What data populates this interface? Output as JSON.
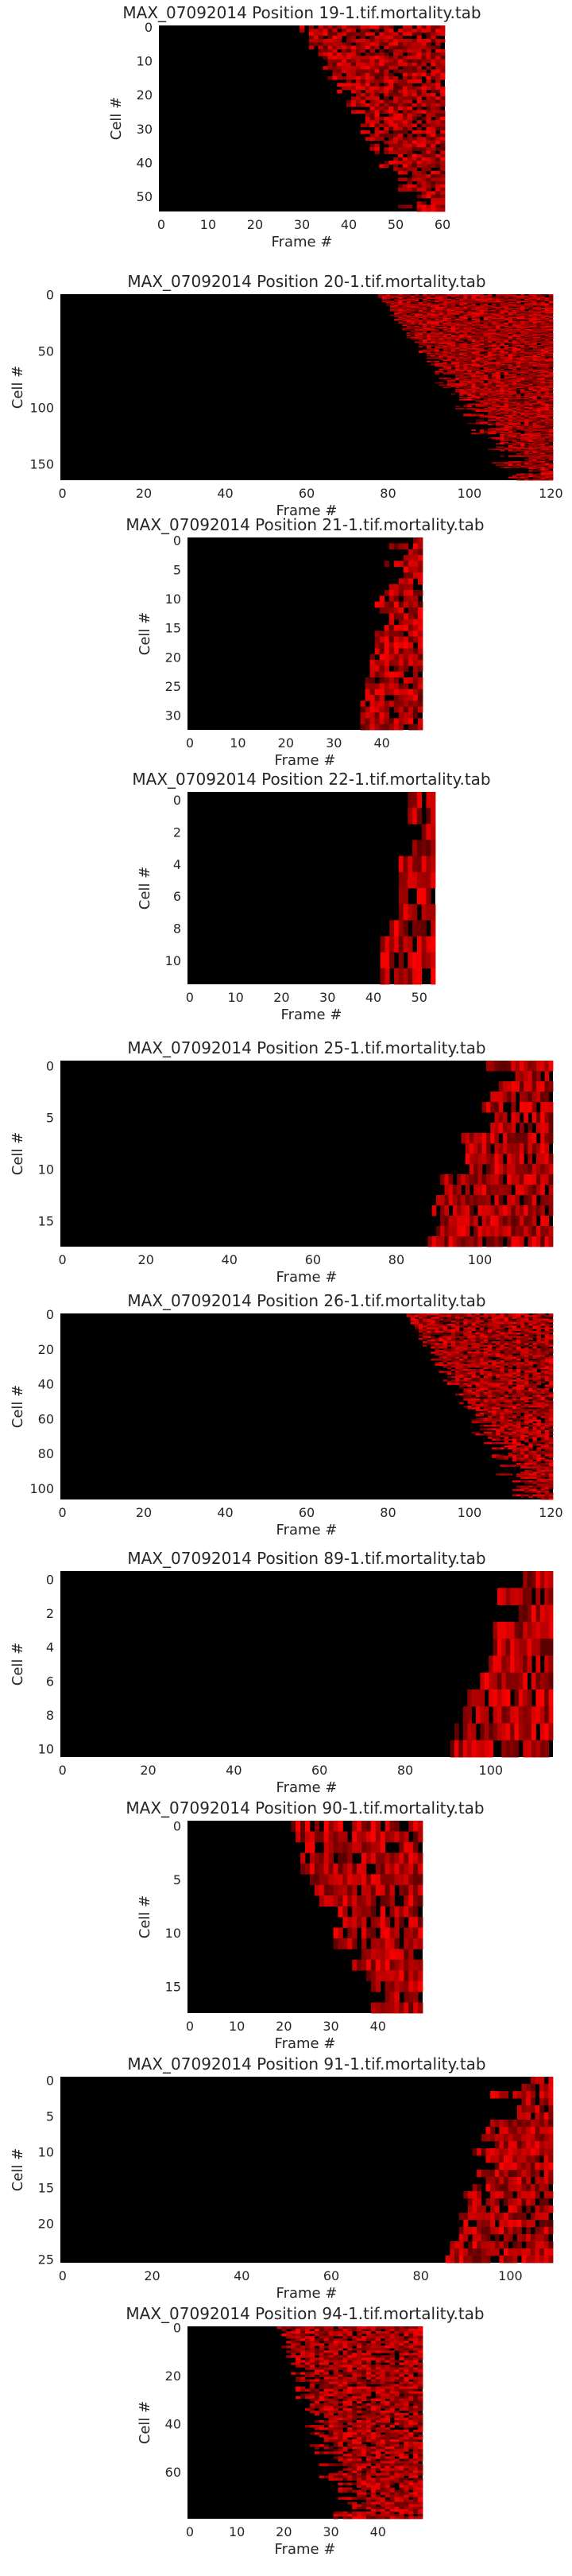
{
  "chart_data": [
    {
      "type": "heatmap",
      "title": "MAX_07092014 Position 19-1.tif.mortality.tab",
      "xlabel": "Frame #",
      "ylabel": "Cell #",
      "n_frames": 61,
      "n_cells": 55,
      "x_ticks": [
        0,
        10,
        20,
        30,
        40,
        50,
        60
      ],
      "y_ticks": [
        0,
        10,
        20,
        30,
        40,
        50
      ],
      "x_tick_labels": [
        "0",
        "10",
        "20",
        "30",
        "40",
        "50",
        "60"
      ],
      "y_tick_labels": [
        "0",
        "10",
        "20",
        "30",
        "40",
        "50"
      ],
      "onset_start": 30,
      "onset_end": 61,
      "colormap": [
        "#000000",
        "#ff0000"
      ]
    },
    {
      "type": "heatmap",
      "title": "MAX_07092014 Position 20-1.tif.mortality.tab",
      "xlabel": "Frame #",
      "ylabel": "Cell #",
      "n_frames": 121,
      "n_cells": 165,
      "x_ticks": [
        0,
        20,
        40,
        60,
        80,
        100,
        120
      ],
      "y_ticks": [
        0,
        50,
        100,
        150
      ],
      "x_tick_labels": [
        "0",
        "20",
        "40",
        "60",
        "80",
        "100",
        "120"
      ],
      "y_tick_labels": [
        "0",
        "50",
        "100",
        "150"
      ],
      "onset_start": 78,
      "onset_end": 121,
      "colormap": [
        "#000000",
        "#ff0000"
      ]
    },
    {
      "type": "heatmap",
      "title": "MAX_07092014 Position 21-1.tif.mortality.tab",
      "xlabel": "Frame #",
      "ylabel": "Cell #",
      "n_frames": 49,
      "n_cells": 33,
      "x_ticks": [
        0,
        10,
        20,
        30,
        40
      ],
      "y_ticks": [
        0,
        5,
        10,
        15,
        20,
        25,
        30
      ],
      "x_tick_labels": [
        "0",
        "10",
        "20",
        "30",
        "40"
      ],
      "y_tick_labels": [
        "0",
        "5",
        "10",
        "15",
        "20",
        "25",
        "30"
      ],
      "onset_start": 34,
      "onset_end": 47,
      "colormap": [
        "#000000",
        "#ff0000"
      ]
    },
    {
      "type": "heatmap",
      "title": "MAX_07092014 Position 22-1.tif.mortality.tab",
      "xlabel": "Frame #",
      "ylabel": "Cell #",
      "n_frames": 54,
      "n_cells": 12,
      "x_ticks": [
        0,
        10,
        20,
        30,
        40,
        50
      ],
      "y_ticks": [
        0,
        2,
        4,
        6,
        8,
        10
      ],
      "x_tick_labels": [
        "0",
        "10",
        "20",
        "30",
        "40",
        "50"
      ],
      "y_tick_labels": [
        "0",
        "2",
        "4",
        "6",
        "8",
        "10"
      ],
      "onset_start": 40,
      "onset_end": 53,
      "colormap": [
        "#000000",
        "#ff0000"
      ]
    },
    {
      "type": "heatmap",
      "title": "MAX_07092014 Position 25-1.tif.mortality.tab",
      "xlabel": "Frame #",
      "ylabel": "Cell #",
      "n_frames": 118,
      "n_cells": 18,
      "x_ticks": [
        0,
        20,
        40,
        60,
        80,
        100
      ],
      "y_ticks": [
        0,
        5,
        10,
        15
      ],
      "x_tick_labels": [
        "0",
        "20",
        "40",
        "60",
        "80",
        "100"
      ],
      "y_tick_labels": [
        "0",
        "5",
        "10",
        "15"
      ],
      "onset_start": 84,
      "onset_end": 112,
      "colormap": [
        "#000000",
        "#ff0000"
      ]
    },
    {
      "type": "heatmap",
      "title": "MAX_07092014 Position 26-1.tif.mortality.tab",
      "xlabel": "Frame #",
      "ylabel": "Cell #",
      "n_frames": 121,
      "n_cells": 107,
      "x_ticks": [
        0,
        20,
        40,
        60,
        80,
        100,
        120
      ],
      "y_ticks": [
        0,
        20,
        40,
        60,
        80,
        100
      ],
      "x_tick_labels": [
        "0",
        "20",
        "40",
        "60",
        "80",
        "100",
        "120"
      ],
      "y_tick_labels": [
        "0",
        "20",
        "40",
        "60",
        "80",
        "100"
      ],
      "onset_start": 85,
      "onset_end": 121,
      "colormap": [
        "#000000",
        "#ff0000"
      ]
    },
    {
      "type": "heatmap",
      "title": "MAX_07092014 Position 89-1.tif.mortality.tab",
      "xlabel": "Frame #",
      "ylabel": "Cell #",
      "n_frames": 115,
      "n_cells": 11,
      "x_ticks": [
        0,
        20,
        40,
        60,
        80,
        100
      ],
      "y_ticks": [
        0,
        2,
        4,
        6,
        8,
        10
      ],
      "x_tick_labels": [
        "0",
        "20",
        "40",
        "60",
        "80",
        "100"
      ],
      "y_tick_labels": [
        "0",
        "2",
        "4",
        "6",
        "8",
        "10"
      ],
      "onset_start": 88,
      "onset_end": 112,
      "colormap": [
        "#000000",
        "#ff0000"
      ]
    },
    {
      "type": "heatmap",
      "title": "MAX_07092014 Position 90-1.tif.mortality.tab",
      "xlabel": "Frame #",
      "ylabel": "Cell #",
      "n_frames": 50,
      "n_cells": 18,
      "x_ticks": [
        0,
        10,
        20,
        30,
        40
      ],
      "y_ticks": [
        0,
        5,
        10,
        15
      ],
      "x_tick_labels": [
        "0",
        "10",
        "20",
        "30",
        "40"
      ],
      "y_tick_labels": [
        "0",
        "5",
        "10",
        "15"
      ],
      "onset_start": 18,
      "onset_end": 44,
      "colormap": [
        "#000000",
        "#ff0000"
      ]
    },
    {
      "type": "heatmap",
      "title": "MAX_07092014 Position 91-1.tif.mortality.tab",
      "xlabel": "Frame #",
      "ylabel": "Cell #",
      "n_frames": 110,
      "n_cells": 26,
      "x_ticks": [
        0,
        20,
        40,
        60,
        80,
        100
      ],
      "y_ticks": [
        0,
        5,
        10,
        15,
        20,
        25
      ],
      "x_tick_labels": [
        "0",
        "20",
        "40",
        "60",
        "80",
        "100"
      ],
      "y_tick_labels": [
        "0",
        "5",
        "10",
        "15",
        "20",
        "25"
      ],
      "onset_start": 84,
      "onset_end": 106,
      "colormap": [
        "#000000",
        "#ff0000"
      ]
    },
    {
      "type": "heatmap",
      "title": "MAX_07092014 Position 94-1.tif.mortality.tab",
      "xlabel": "Frame #",
      "ylabel": "Cell #",
      "n_frames": 50,
      "n_cells": 80,
      "x_ticks": [
        0,
        10,
        20,
        30,
        40
      ],
      "y_ticks": [
        0,
        20,
        40,
        60
      ],
      "x_tick_labels": [
        "0",
        "10",
        "20",
        "30",
        "40"
      ],
      "y_tick_labels": [
        "0",
        "20",
        "40",
        "60"
      ],
      "onset_start": 16,
      "onset_end": 40,
      "colormap": [
        "#000000",
        "#ff0000"
      ]
    }
  ]
}
